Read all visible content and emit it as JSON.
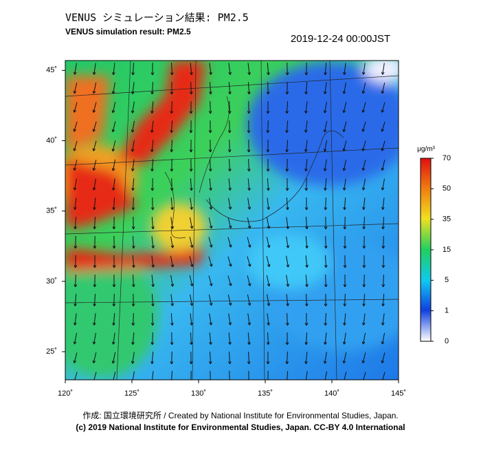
{
  "title": "VENUS シミュレーション結果: PM2.5",
  "subtitle": "VENUS simulation result: PM2.5",
  "timestamp": "2019-12-24 00:00JST",
  "map": {
    "xlim": [
      120,
      145
    ],
    "ylim": [
      23,
      45.7
    ],
    "xticks": [
      {
        "value": 120,
        "label": "120˚"
      },
      {
        "value": 125,
        "label": "125˚"
      },
      {
        "value": 130,
        "label": "130˚"
      },
      {
        "value": 135,
        "label": "135˚"
      },
      {
        "value": 140,
        "label": "140˚"
      },
      {
        "value": 145,
        "label": "145˚"
      }
    ],
    "yticks": [
      {
        "value": 25,
        "label": "25˚"
      },
      {
        "value": 30,
        "label": "30˚"
      },
      {
        "value": 35,
        "label": "35˚"
      },
      {
        "value": 40,
        "label": "40˚"
      },
      {
        "value": 45,
        "label": "45˚"
      }
    ]
  },
  "colorbar": {
    "unit": "μg/m³",
    "ticks": [
      0,
      1,
      5,
      15,
      35,
      50,
      70
    ]
  },
  "credits": [
    "作成: 国立環境研究所 / Created by National Institute for Environmental Studies, Japan.",
    "(c) 2019 National Institute for Environmental Studies, Japan. CC-BY 4.0 International"
  ]
}
